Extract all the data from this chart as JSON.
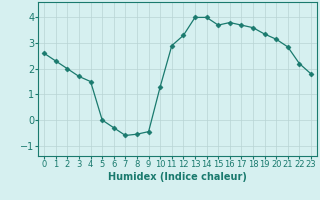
{
  "x": [
    0,
    1,
    2,
    3,
    4,
    5,
    6,
    7,
    8,
    9,
    10,
    11,
    12,
    13,
    14,
    15,
    16,
    17,
    18,
    19,
    20,
    21,
    22,
    23
  ],
  "y": [
    2.6,
    2.3,
    2.0,
    1.7,
    1.5,
    0.0,
    -0.3,
    -0.6,
    -0.55,
    -0.45,
    1.3,
    2.9,
    3.3,
    4.0,
    4.0,
    3.7,
    3.8,
    3.7,
    3.6,
    3.35,
    3.15,
    2.85,
    2.2,
    1.8
  ],
  "line_color": "#1a7a6e",
  "marker": "D",
  "marker_size": 2.5,
  "bg_color": "#d6f0f0",
  "grid_color": "#b8d4d4",
  "xlabel": "Humidex (Indice chaleur)",
  "xlim": [
    -0.5,
    23.5
  ],
  "ylim": [
    -1.4,
    4.6
  ],
  "yticks": [
    -1,
    0,
    1,
    2,
    3,
    4
  ],
  "xtick_labels": [
    "0",
    "1",
    "2",
    "3",
    "4",
    "5",
    "6",
    "7",
    "8",
    "9",
    "10",
    "11",
    "12",
    "13",
    "14",
    "15",
    "16",
    "17",
    "18",
    "19",
    "20",
    "21",
    "22",
    "23"
  ],
  "xlabel_fontsize": 7,
  "tick_fontsize": 7
}
